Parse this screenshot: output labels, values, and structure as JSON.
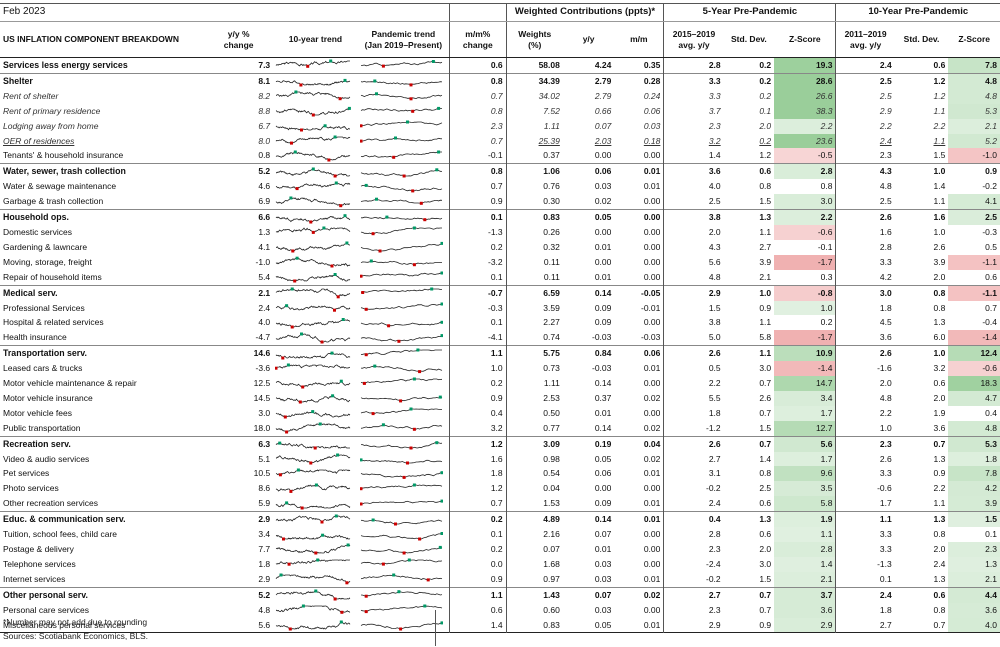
{
  "title": "Feb 2023",
  "group_headers": {
    "weighted": "Weighted Contributions (ppts)*",
    "five_year": "5-Year Pre-Pandemic",
    "ten_year": "10-Year Pre-Pandemic"
  },
  "column_headers": {
    "component": "US INFLATION COMPONENT BREAKDOWN",
    "yy_change": [
      "y/y %",
      "change"
    ],
    "trend10": "10-year trend",
    "pandemic_trend": [
      "Pandemic trend",
      "(Jan 2019–Present)"
    ],
    "mm_change": [
      "m/m%",
      "change"
    ],
    "weights": [
      "Weights",
      "(%)"
    ],
    "yy": "y/y",
    "mm": "m/m",
    "avg5": [
      "2015–2019",
      "avg. y/y"
    ],
    "std5": "Std. Dev.",
    "z5": "Z-Score",
    "avg10": [
      "2011–2019",
      "avg. y/y"
    ],
    "std10": "Std. Dev.",
    "z10": "Z-Score"
  },
  "colors": {
    "green": "#cfe8cf",
    "red": "#f6c9c9",
    "spark_line": "#222222",
    "spark_min": "#cc0000",
    "spark_max": "#009966"
  },
  "rows": [
    {
      "label": "Services less energy services",
      "style": "bold",
      "yy": "7.3",
      "mm": "0.6",
      "w": "58.08",
      "wy": "4.24",
      "wm": "0.35",
      "a5": "2.8",
      "s5": "0.2",
      "z5": "19.3",
      "a10": "2.4",
      "s10": "0.6",
      "z10": "7.8"
    },
    {
      "label": "Shelter",
      "style": "bold",
      "yy": "8.1",
      "mm": "0.8",
      "w": "34.39",
      "wy": "2.79",
      "wm": "0.28",
      "a5": "3.3",
      "s5": "0.2",
      "z5": "28.6",
      "a10": "2.5",
      "s10": "1.2",
      "z10": "4.8"
    },
    {
      "label": "Rent of shelter",
      "style": "sub",
      "yy": "8.2",
      "mm": "0.7",
      "w": "34.02",
      "wy": "2.79",
      "wm": "0.24",
      "a5": "3.3",
      "s5": "0.2",
      "z5": "26.6",
      "a10": "2.5",
      "s10": "1.2",
      "z10": "4.8"
    },
    {
      "label": "Rent of primary residence",
      "style": "sub",
      "yy": "8.8",
      "mm": "0.8",
      "w": "7.52",
      "wy": "0.66",
      "wm": "0.06",
      "a5": "3.7",
      "s5": "0.1",
      "z5": "38.3",
      "a10": "2.9",
      "s10": "1.1",
      "z10": "5.3"
    },
    {
      "label": "Lodging away from home",
      "style": "sub",
      "yy": "6.7",
      "mm": "2.3",
      "w": "1.11",
      "wy": "0.07",
      "wm": "0.03",
      "a5": "2.3",
      "s5": "2.0",
      "z5": "2.2",
      "a10": "2.2",
      "s10": "2.2",
      "z10": "2.1"
    },
    {
      "label": "OER of residences",
      "style": "sub u",
      "yy": "8.0",
      "mm": "0.7",
      "w": "25.39",
      "wy": "2.03",
      "wm": "0.18",
      "a5": "3.2",
      "s5": "0.2",
      "z5": "23.6",
      "a10": "2.4",
      "s10": "1.1",
      "z10": "5.2"
    },
    {
      "label": "Tenants' & household insurance",
      "style": "plain",
      "yy": "0.8",
      "mm": "-0.1",
      "w": "0.37",
      "wy": "0.00",
      "wm": "0.00",
      "a5": "1.4",
      "s5": "1.2",
      "z5": "-0.5",
      "a10": "2.3",
      "s10": "1.5",
      "z10": "-1.0"
    },
    {
      "label": "Water, sewer, trash collection",
      "style": "bold",
      "yy": "5.2",
      "mm": "0.8",
      "w": "1.06",
      "wy": "0.06",
      "wm": "0.01",
      "a5": "3.6",
      "s5": "0.6",
      "z5": "2.8",
      "a10": "4.3",
      "s10": "1.0",
      "z10": "0.9"
    },
    {
      "label": "Water & sewage maintenance",
      "style": "plain",
      "yy": "4.6",
      "mm": "0.7",
      "w": "0.76",
      "wy": "0.03",
      "wm": "0.01",
      "a5": "4.0",
      "s5": "0.8",
      "z5": "0.8",
      "a10": "4.8",
      "s10": "1.4",
      "z10": "-0.2"
    },
    {
      "label": "Garbage & trash collection",
      "style": "plain",
      "yy": "6.9",
      "mm": "0.9",
      "w": "0.30",
      "wy": "0.02",
      "wm": "0.00",
      "a5": "2.5",
      "s5": "1.5",
      "z5": "3.0",
      "a10": "2.5",
      "s10": "1.1",
      "z10": "4.1"
    },
    {
      "label": "Household ops.",
      "style": "bold",
      "yy": "6.6",
      "mm": "0.1",
      "w": "0.83",
      "wy": "0.05",
      "wm": "0.00",
      "a5": "3.8",
      "s5": "1.3",
      "z5": "2.2",
      "a10": "2.6",
      "s10": "1.6",
      "z10": "2.5"
    },
    {
      "label": "Domestic services",
      "style": "plain",
      "yy": "1.3",
      "mm": "-1.3",
      "w": "0.26",
      "wy": "0.00",
      "wm": "0.00",
      "a5": "2.0",
      "s5": "1.1",
      "z5": "-0.6",
      "a10": "1.6",
      "s10": "1.0",
      "z10": "-0.3"
    },
    {
      "label": "Gardening & lawncare",
      "style": "plain",
      "yy": "4.1",
      "mm": "0.2",
      "w": "0.32",
      "wy": "0.01",
      "wm": "0.00",
      "a5": "4.3",
      "s5": "2.7",
      "z5": "-0.1",
      "a10": "2.8",
      "s10": "2.6",
      "z10": "0.5"
    },
    {
      "label": "Moving, storage, freight",
      "style": "plain",
      "yy": "-1.0",
      "mm": "-3.2",
      "w": "0.11",
      "wy": "0.00",
      "wm": "0.00",
      "a5": "5.6",
      "s5": "3.9",
      "z5": "-1.7",
      "a10": "3.3",
      "s10": "3.9",
      "z10": "-1.1"
    },
    {
      "label": "Repair of household items",
      "style": "plain",
      "yy": "5.4",
      "mm": "0.1",
      "w": "0.11",
      "wy": "0.01",
      "wm": "0.00",
      "a5": "4.8",
      "s5": "2.1",
      "z5": "0.3",
      "a10": "4.2",
      "s10": "2.0",
      "z10": "0.6"
    },
    {
      "label": "Medical serv.",
      "style": "bold",
      "yy": "2.1",
      "mm": "-0.7",
      "w": "6.59",
      "wy": "0.14",
      "wm": "-0.05",
      "a5": "2.9",
      "s5": "1.0",
      "z5": "-0.8",
      "a10": "3.0",
      "s10": "0.8",
      "z10": "-1.1"
    },
    {
      "label": "Professional Services",
      "style": "plain",
      "yy": "2.4",
      "mm": "-0.3",
      "w": "3.59",
      "wy": "0.09",
      "wm": "-0.01",
      "a5": "1.5",
      "s5": "0.9",
      "z5": "1.0",
      "a10": "1.8",
      "s10": "0.8",
      "z10": "0.7"
    },
    {
      "label": "Hospital & related services",
      "style": "plain",
      "yy": "4.0",
      "mm": "0.1",
      "w": "2.27",
      "wy": "0.09",
      "wm": "0.00",
      "a5": "3.8",
      "s5": "1.1",
      "z5": "0.2",
      "a10": "4.5",
      "s10": "1.3",
      "z10": "-0.4"
    },
    {
      "label": "Health insurance",
      "style": "plain",
      "yy": "-4.7",
      "mm": "-4.1",
      "w": "0.74",
      "wy": "-0.03",
      "wm": "-0.03",
      "a5": "5.0",
      "s5": "5.8",
      "z5": "-1.7",
      "a10": "3.6",
      "s10": "6.0",
      "z10": "-1.4"
    },
    {
      "label": "Transportation serv.",
      "style": "bold",
      "yy": "14.6",
      "mm": "1.1",
      "w": "5.75",
      "wy": "0.84",
      "wm": "0.06",
      "a5": "2.6",
      "s5": "1.1",
      "z5": "10.9",
      "a10": "2.6",
      "s10": "1.0",
      "z10": "12.4"
    },
    {
      "label": "Leased cars & trucks",
      "style": "plain",
      "yy": "-3.6",
      "mm": "1.0",
      "w": "0.73",
      "wy": "-0.03",
      "wm": "0.01",
      "a5": "0.5",
      "s5": "3.0",
      "z5": "-1.4",
      "a10": "-1.6",
      "s10": "3.2",
      "z10": "-0.6"
    },
    {
      "label": "Motor vehicle maintenance & repair",
      "style": "plain",
      "yy": "12.5",
      "mm": "0.2",
      "w": "1.11",
      "wy": "0.14",
      "wm": "0.00",
      "a5": "2.2",
      "s5": "0.7",
      "z5": "14.7",
      "a10": "2.0",
      "s10": "0.6",
      "z10": "18.3"
    },
    {
      "label": "Motor vehicle insurance",
      "style": "plain",
      "yy": "14.5",
      "mm": "0.9",
      "w": "2.53",
      "wy": "0.37",
      "wm": "0.02",
      "a5": "5.5",
      "s5": "2.6",
      "z5": "3.4",
      "a10": "4.8",
      "s10": "2.0",
      "z10": "4.7"
    },
    {
      "label": "Motor vehicle fees",
      "style": "plain",
      "yy": "3.0",
      "mm": "0.4",
      "w": "0.50",
      "wy": "0.01",
      "wm": "0.00",
      "a5": "1.8",
      "s5": "0.7",
      "z5": "1.7",
      "a10": "2.2",
      "s10": "1.9",
      "z10": "0.4"
    },
    {
      "label": "Public transportation",
      "style": "plain",
      "yy": "18.0",
      "mm": "3.2",
      "w": "0.77",
      "wy": "0.14",
      "wm": "0.02",
      "a5": "-1.2",
      "s5": "1.5",
      "z5": "12.7",
      "a10": "1.0",
      "s10": "3.6",
      "z10": "4.8"
    },
    {
      "label": "Recreation serv.",
      "style": "bold",
      "yy": "6.3",
      "mm": "1.2",
      "w": "3.09",
      "wy": "0.19",
      "wm": "0.04",
      "a5": "2.6",
      "s5": "0.7",
      "z5": "5.6",
      "a10": "2.3",
      "s10": "0.7",
      "z10": "5.3"
    },
    {
      "label": "Video & audio services",
      "style": "plain",
      "yy": "5.1",
      "mm": "1.6",
      "w": "0.98",
      "wy": "0.05",
      "wm": "0.02",
      "a5": "2.7",
      "s5": "1.4",
      "z5": "1.7",
      "a10": "2.6",
      "s10": "1.3",
      "z10": "1.8"
    },
    {
      "label": "Pet services",
      "style": "plain",
      "yy": "10.5",
      "mm": "1.8",
      "w": "0.54",
      "wy": "0.06",
      "wm": "0.01",
      "a5": "3.1",
      "s5": "0.8",
      "z5": "9.6",
      "a10": "3.3",
      "s10": "0.9",
      "z10": "7.8"
    },
    {
      "label": "Photo services",
      "style": "plain",
      "yy": "8.6",
      "mm": "1.2",
      "w": "0.04",
      "wy": "0.00",
      "wm": "0.00",
      "a5": "-0.2",
      "s5": "2.5",
      "z5": "3.5",
      "a10": "-0.6",
      "s10": "2.2",
      "z10": "4.2"
    },
    {
      "label": "Other recreation services",
      "style": "plain",
      "yy": "5.9",
      "mm": "0.7",
      "w": "1.53",
      "wy": "0.09",
      "wm": "0.01",
      "a5": "2.4",
      "s5": "0.6",
      "z5": "5.8",
      "a10": "1.7",
      "s10": "1.1",
      "z10": "3.9"
    },
    {
      "label": "Educ. & communication serv.",
      "style": "bold",
      "yy": "2.9",
      "mm": "0.2",
      "w": "4.89",
      "wy": "0.14",
      "wm": "0.01",
      "a5": "0.4",
      "s5": "1.3",
      "z5": "1.9",
      "a10": "1.1",
      "s10": "1.3",
      "z10": "1.5"
    },
    {
      "label": "Tuition, school fees, child care",
      "style": "plain",
      "yy": "3.4",
      "mm": "0.1",
      "w": "2.16",
      "wy": "0.07",
      "wm": "0.00",
      "a5": "2.8",
      "s5": "0.6",
      "z5": "1.1",
      "a10": "3.3",
      "s10": "0.8",
      "z10": "0.1"
    },
    {
      "label": "Postage & delivery",
      "style": "plain",
      "yy": "7.7",
      "mm": "0.2",
      "w": "0.07",
      "wy": "0.01",
      "wm": "0.00",
      "a5": "2.3",
      "s5": "2.0",
      "z5": "2.8",
      "a10": "3.3",
      "s10": "2.0",
      "z10": "2.3"
    },
    {
      "label": "Telephone services",
      "style": "plain",
      "yy": "1.8",
      "mm": "0.0",
      "w": "1.68",
      "wy": "0.03",
      "wm": "0.00",
      "a5": "-2.4",
      "s5": "3.0",
      "z5": "1.4",
      "a10": "-1.3",
      "s10": "2.4",
      "z10": "1.3"
    },
    {
      "label": "Internet services",
      "style": "plain",
      "yy": "2.9",
      "mm": "0.9",
      "w": "0.97",
      "wy": "0.03",
      "wm": "0.01",
      "a5": "-0.2",
      "s5": "1.5",
      "z5": "2.1",
      "a10": "0.1",
      "s10": "1.3",
      "z10": "2.1"
    },
    {
      "label": "Other personal serv.",
      "style": "bold",
      "yy": "5.2",
      "mm": "1.1",
      "w": "1.43",
      "wy": "0.07",
      "wm": "0.02",
      "a5": "2.7",
      "s5": "0.7",
      "z5": "3.7",
      "a10": "2.4",
      "s10": "0.6",
      "z10": "4.4"
    },
    {
      "label": "Personal care services",
      "style": "plain",
      "yy": "4.8",
      "mm": "0.6",
      "w": "0.60",
      "wy": "0.03",
      "wm": "0.00",
      "a5": "2.3",
      "s5": "0.7",
      "z5": "3.6",
      "a10": "1.8",
      "s10": "0.8",
      "z10": "3.6"
    },
    {
      "label": "Miscellaneous personal services",
      "style": "plain",
      "yy": "5.6",
      "mm": "1.4",
      "w": "0.83",
      "wy": "0.05",
      "wm": "0.01",
      "a5": "2.9",
      "s5": "0.9",
      "z5": "2.9",
      "a10": "2.7",
      "s10": "0.7",
      "z10": "4.0"
    }
  ],
  "footnotes": [
    "*Number may not add due to rounding",
    "Sources: Scotiabank Economics, BLS."
  ]
}
